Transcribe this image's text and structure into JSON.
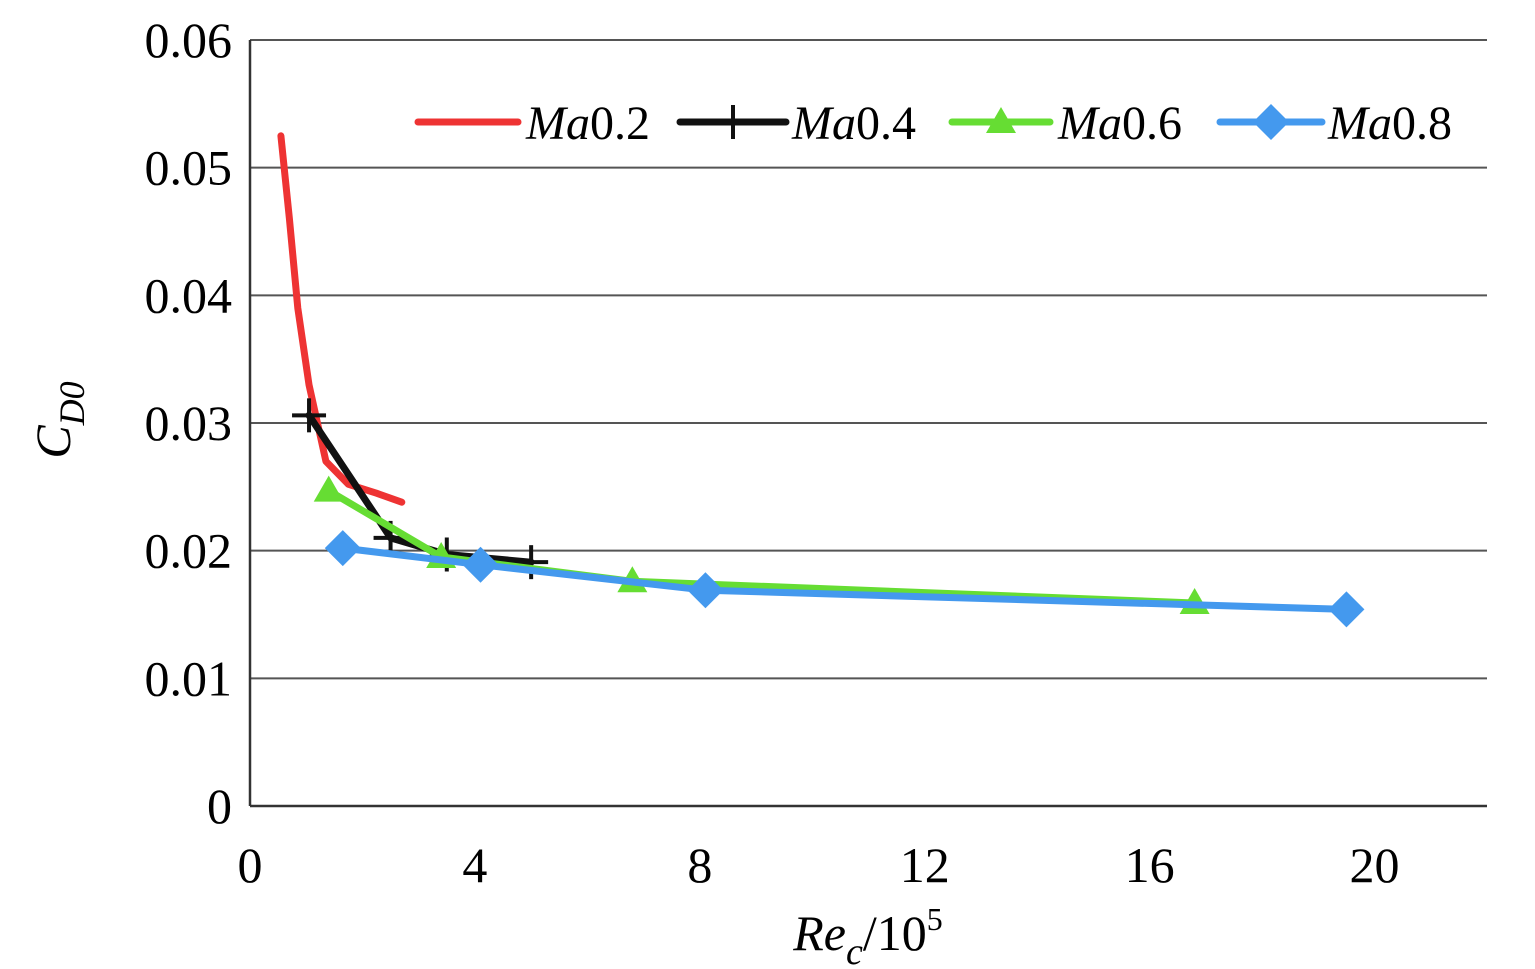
{
  "chart_data": {
    "type": "line",
    "title": "",
    "xlabel": {
      "main": "Re",
      "sub": "c",
      "suffix": "/10",
      "sup": "5"
    },
    "ylabel": {
      "main": "C",
      "sub": "D0"
    },
    "xlim": [
      0,
      22
    ],
    "ylim": [
      0,
      0.06
    ],
    "xticks": [
      0,
      4,
      8,
      12,
      16,
      20
    ],
    "xtick_labels": [
      "0",
      "4",
      "8",
      "12",
      "16",
      "20"
    ],
    "yticks": [
      0,
      0.01,
      0.02,
      0.03,
      0.04,
      0.05,
      0.06
    ],
    "ytick_labels": [
      "0",
      "0.01",
      "0.02",
      "0.03",
      "0.04",
      "0.05",
      "0.06"
    ],
    "grid": "horizontal",
    "legend_position": "top-right",
    "series": [
      {
        "name_prefix": "Ma",
        "name_value": "0.2",
        "color": "#ee3333",
        "marker": "none",
        "points": [
          [
            0.55,
            0.0525
          ],
          [
            0.7,
            0.046
          ],
          [
            0.85,
            0.039
          ],
          [
            1.05,
            0.033
          ],
          [
            1.35,
            0.027
          ],
          [
            1.75,
            0.0252
          ],
          [
            2.25,
            0.0245
          ],
          [
            2.7,
            0.0238
          ]
        ]
      },
      {
        "name_prefix": "Ma",
        "name_value": "0.4",
        "color": "#111111",
        "marker": "plus",
        "points": [
          [
            1.05,
            0.0306
          ],
          [
            2.5,
            0.021
          ],
          [
            3.5,
            0.0197
          ],
          [
            5.0,
            0.0191
          ]
        ]
      },
      {
        "name_prefix": "Ma",
        "name_value": "0.6",
        "color": "#66dd33",
        "marker": "triangle",
        "points": [
          [
            1.4,
            0.0247
          ],
          [
            3.4,
            0.0195
          ],
          [
            6.8,
            0.0176
          ],
          [
            16.8,
            0.0159
          ]
        ]
      },
      {
        "name_prefix": "Ma",
        "name_value": "0.8",
        "color": "#4499ee",
        "marker": "diamond",
        "points": [
          [
            1.65,
            0.0202
          ],
          [
            4.1,
            0.0189
          ],
          [
            8.1,
            0.0169
          ],
          [
            19.5,
            0.0154
          ]
        ]
      }
    ]
  }
}
